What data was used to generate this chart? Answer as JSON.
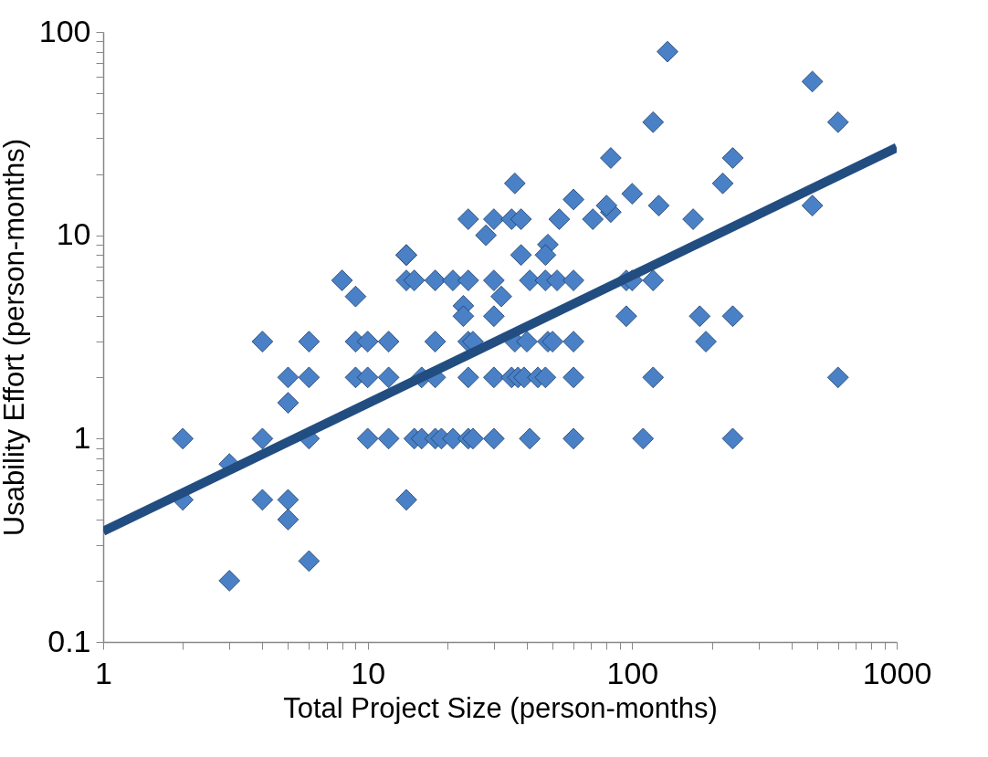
{
  "chart_data": {
    "type": "scatter",
    "xlabel": "Total Project Size (person-months)",
    "ylabel": "Usability Effort (person-months)",
    "log": "xy",
    "grid": false,
    "xlim": [
      1,
      1000
    ],
    "ylim": [
      0.1,
      100
    ],
    "xticks": [
      1,
      {
        "value": 2,
        "label": null
      },
      {
        "value": 3,
        "label": null
      },
      {
        "value": 4,
        "label": null
      },
      {
        "value": 5,
        "label": null
      },
      {
        "value": 6,
        "label": null
      },
      {
        "value": 7,
        "label": null
      },
      {
        "value": 8,
        "label": null
      },
      {
        "value": 9,
        "label": null
      },
      10,
      {
        "value": 20,
        "label": null
      },
      {
        "value": 30,
        "label": null
      },
      {
        "value": 40,
        "label": null
      },
      {
        "value": 50,
        "label": null
      },
      {
        "value": 60,
        "label": null
      },
      {
        "value": 70,
        "label": null
      },
      {
        "value": 80,
        "label": null
      },
      {
        "value": 90,
        "label": null
      },
      100,
      {
        "value": 200,
        "label": null
      },
      {
        "value": 300,
        "label": null
      },
      {
        "value": 400,
        "label": null
      },
      {
        "value": 500,
        "label": null
      },
      {
        "value": 600,
        "label": null
      },
      {
        "value": 700,
        "label": null
      },
      {
        "value": 800,
        "label": null
      },
      {
        "value": 900,
        "label": null
      },
      1000
    ],
    "yticks": [
      0.1,
      {
        "value": 0.2,
        "label": null
      },
      {
        "value": 0.3,
        "label": null
      },
      {
        "value": 0.4,
        "label": null
      },
      {
        "value": 0.5,
        "label": null
      },
      {
        "value": 0.6,
        "label": null
      },
      {
        "value": 0.7,
        "label": null
      },
      {
        "value": 0.8,
        "label": null
      },
      {
        "value": 0.9,
        "label": null
      },
      1,
      {
        "value": 2,
        "label": null
      },
      {
        "value": 3,
        "label": null
      },
      {
        "value": 4,
        "label": null
      },
      {
        "value": 5,
        "label": null
      },
      {
        "value": 6,
        "label": null
      },
      {
        "value": 7,
        "label": null
      },
      {
        "value": 8,
        "label": null
      },
      {
        "value": 9,
        "label": null
      },
      10,
      {
        "value": 20,
        "label": null
      },
      {
        "value": 30,
        "label": null
      },
      {
        "value": 40,
        "label": null
      },
      {
        "value": 50,
        "label": null
      },
      {
        "value": 60,
        "label": null
      },
      {
        "value": 70,
        "label": null
      },
      {
        "value": 80,
        "label": null
      },
      {
        "value": 90,
        "label": null
      },
      100
    ],
    "series": [
      {
        "marker": "diamond",
        "color": "#4a80c6",
        "x": [
          2,
          2,
          3,
          3,
          4,
          4,
          4,
          5,
          5,
          5,
          5,
          6,
          6,
          6,
          6,
          8,
          9,
          9,
          9,
          10,
          10,
          12,
          12,
          10,
          12,
          14,
          14,
          14,
          15,
          15,
          16,
          18,
          18,
          19,
          21,
          24,
          25,
          30,
          41,
          60,
          16,
          18,
          24,
          30,
          35,
          37,
          39,
          44,
          47,
          60,
          18,
          24,
          25,
          36,
          40,
          48,
          50,
          60,
          21,
          24,
          30,
          41,
          47,
          52,
          60,
          32,
          23,
          23,
          30,
          14,
          38,
          48,
          47,
          24,
          30,
          35,
          38,
          53,
          71,
          83,
          80,
          28,
          36,
          60,
          83,
          100,
          136,
          480,
          600,
          120,
          240,
          220,
          126,
          170,
          480,
          95,
          120,
          95,
          180,
          240,
          190,
          120,
          600,
          110,
          240,
          100
        ],
        "values": [
          1,
          0.5,
          0.75,
          0.2,
          3,
          1,
          0.5,
          2,
          1.5,
          0.5,
          0.4,
          3,
          2,
          1,
          0.25,
          6,
          5,
          3,
          2,
          3,
          2,
          3,
          2,
          1,
          1,
          0.5,
          8,
          6,
          6,
          1,
          1,
          1,
          6,
          1,
          1,
          1,
          1,
          1,
          1,
          1,
          2,
          2,
          2,
          2,
          2,
          2,
          2,
          2,
          2,
          2,
          3,
          3,
          3,
          3,
          3,
          3,
          3,
          3,
          6,
          6,
          6,
          6,
          6,
          6,
          6,
          5,
          4.5,
          4,
          4,
          8,
          8,
          9,
          8,
          12,
          12,
          12,
          12,
          12,
          12,
          13,
          14,
          10,
          18,
          15,
          24,
          16,
          80,
          57,
          36,
          36,
          24,
          18,
          14,
          12,
          14,
          6,
          6,
          4,
          4,
          4,
          3,
          2,
          2,
          1,
          1,
          6
        ]
      },
      {
        "type": "line",
        "color": "#224d80",
        "x": [
          1,
          1000
        ],
        "values": [
          0.35,
          27
        ]
      }
    ]
  }
}
